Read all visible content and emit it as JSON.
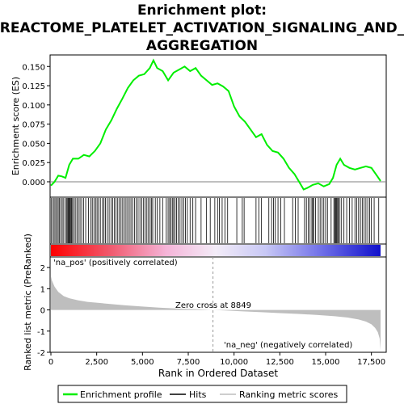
{
  "title_lines": [
    "Enrichment plot:",
    "REACTOME_PLATELET_ACTIVATION_SIGNALING_AND_",
    "AGGREGATION"
  ],
  "legend": {
    "enrichment_profile": "Enrichment profile",
    "hits": "Hits",
    "ranking_metric": "Ranking metric scores"
  },
  "colors": {
    "enrichment": "#00ee00",
    "hits": "#000000",
    "metric_fill": "#bebebe",
    "pos_label": "#cc0000",
    "neg_label": "#0000cc",
    "zero_line": "#999999"
  },
  "chart_data": [
    {
      "type": "line",
      "name": "enrichment",
      "ylabel": "Enrichment score (ES)",
      "xlim": [
        0,
        18000
      ],
      "ylim": [
        -0.02,
        0.165
      ],
      "yticks": [
        0.0,
        0.025,
        0.05,
        0.075,
        0.1,
        0.125,
        0.15
      ],
      "ytick_labels": [
        "0.000",
        "0.025",
        "0.050",
        "0.075",
        "0.100",
        "0.125",
        "0.150"
      ],
      "x": [
        0,
        200,
        400,
        600,
        800,
        1000,
        1200,
        1500,
        1800,
        2100,
        2400,
        2700,
        3000,
        3300,
        3600,
        3900,
        4200,
        4500,
        4800,
        5100,
        5400,
        5600,
        5800,
        6100,
        6400,
        6700,
        7000,
        7300,
        7600,
        7900,
        8200,
        8500,
        8800,
        9100,
        9400,
        9700,
        10000,
        10300,
        10600,
        10900,
        11200,
        11500,
        11800,
        12100,
        12400,
        12700,
        13000,
        13300,
        13600,
        13800,
        14000,
        14300,
        14600,
        14900,
        15200,
        15400,
        15600,
        15800,
        16000,
        16300,
        16600,
        16900,
        17200,
        17500,
        17800,
        18000
      ],
      "values": [
        -0.005,
        0.0,
        0.008,
        0.007,
        0.005,
        0.022,
        0.03,
        0.03,
        0.035,
        0.033,
        0.04,
        0.05,
        0.068,
        0.08,
        0.095,
        0.108,
        0.122,
        0.132,
        0.138,
        0.14,
        0.148,
        0.158,
        0.148,
        0.144,
        0.132,
        0.142,
        0.146,
        0.15,
        0.144,
        0.148,
        0.138,
        0.132,
        0.126,
        0.128,
        0.124,
        0.118,
        0.098,
        0.085,
        0.078,
        0.068,
        0.058,
        0.062,
        0.048,
        0.04,
        0.038,
        0.03,
        0.018,
        0.01,
        -0.002,
        -0.01,
        -0.008,
        -0.004,
        -0.002,
        -0.006,
        -0.003,
        0.005,
        0.022,
        0.03,
        0.022,
        0.018,
        0.016,
        0.018,
        0.02,
        0.018,
        0.008,
        0.001
      ]
    },
    {
      "type": "line",
      "name": "ranked_metric",
      "xlabel": "Rank in Ordered Dataset",
      "ylabel": "Ranked list metric (PreRanked)",
      "xlim": [
        0,
        18000
      ],
      "ylim": [
        -2,
        2.5
      ],
      "yticks": [
        -2,
        -1,
        0,
        1,
        2
      ],
      "xticks": [
        0,
        2500,
        5000,
        7500,
        10000,
        12500,
        15000,
        17500
      ],
      "xtick_labels": [
        "0",
        "2,500",
        "5,000",
        "7,500",
        "10,000",
        "12,500",
        "15,000",
        "17,500"
      ],
      "x": [
        0,
        50,
        200,
        400,
        700,
        1000,
        1500,
        2000,
        3000,
        4000,
        5000,
        6000,
        7000,
        8000,
        8849,
        9500,
        10500,
        11500,
        12500,
        13500,
        14500,
        15500,
        16200,
        16800,
        17200,
        17500,
        17700,
        17850,
        17950,
        18000
      ],
      "values": [
        1.6,
        1.4,
        1.1,
        0.85,
        0.65,
        0.55,
        0.45,
        0.38,
        0.3,
        0.22,
        0.16,
        0.1,
        0.06,
        0.03,
        0.0,
        -0.03,
        -0.07,
        -0.11,
        -0.15,
        -0.19,
        -0.24,
        -0.3,
        -0.36,
        -0.45,
        -0.55,
        -0.68,
        -0.85,
        -1.05,
        -1.35,
        -1.9
      ],
      "zero_cross_label": "Zero cross at 8849",
      "zero_cross": 8849,
      "pos_label": "'na_pos' (positively correlated)",
      "neg_label": "'na_neg' (negatively correlated)"
    }
  ],
  "hits": [
    30,
    120,
    180,
    260,
    330,
    400,
    470,
    540,
    620,
    700,
    800,
    870,
    920,
    960,
    1000,
    1040,
    1090,
    1130,
    1180,
    1250,
    1330,
    1420,
    1500,
    1590,
    1680,
    1780,
    1900,
    2050,
    2180,
    2260,
    2350,
    2440,
    2520,
    2600,
    2700,
    2820,
    2900,
    2980,
    3080,
    3180,
    3280,
    3380,
    3470,
    3560,
    3650,
    3740,
    3830,
    3920,
    4010,
    4100,
    4190,
    4280,
    4370,
    4460,
    4560,
    4660,
    4760,
    4860,
    4960,
    5060,
    5150,
    5240,
    5330,
    5420,
    5500,
    5560,
    5700,
    5800,
    5950,
    6100,
    6300,
    6400,
    6480,
    6550,
    6630,
    6700,
    6780,
    6860,
    6950,
    7050,
    7150,
    7250,
    7350,
    7450,
    7600,
    7750,
    7900,
    8200,
    8500,
    8700,
    8950,
    9100,
    9200,
    9350,
    9500,
    9650,
    10150,
    10450,
    10550,
    11200,
    11350,
    11500,
    11900,
    12050,
    12150,
    12250,
    12400,
    12550,
    12750,
    13200,
    13350,
    13500,
    13850,
    13950,
    14050,
    14150,
    14250,
    14300,
    14350,
    14450,
    14600,
    14700,
    14800,
    14900,
    15000,
    15100,
    15300,
    15450,
    15500,
    15550,
    15600,
    15650,
    15700,
    15750,
    15850,
    16000,
    16150,
    16300,
    16450,
    16600,
    16700,
    16800,
    16900,
    17000,
    17100,
    17200,
    17300,
    17400,
    17500,
    17650,
    17900
  ]
}
